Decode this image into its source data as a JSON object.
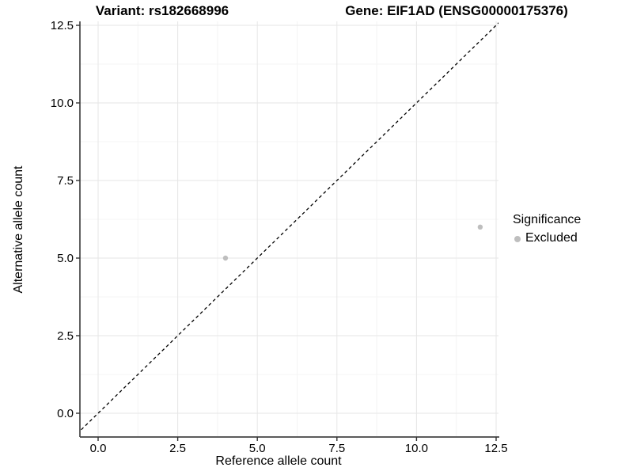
{
  "chart_data": {
    "type": "scatter",
    "title_left": "Variant: rs182668996",
    "title_right": "Gene: EIF1AD (ENSG00000175376)",
    "xlabel": "Reference allele count",
    "ylabel": "Alternative allele count",
    "x_ticks": {
      "values": [
        0,
        2.5,
        5,
        7.5,
        10,
        12.5
      ],
      "labels": [
        "0.0",
        "2.5",
        "5.0",
        "7.5",
        "10.0",
        "12.5"
      ]
    },
    "y_ticks": {
      "values": [
        0,
        2.5,
        5,
        7.5,
        10,
        12.5
      ],
      "labels": [
        "0.0",
        "2.5",
        "5.0",
        "7.5",
        "10.0",
        "12.5"
      ]
    },
    "xlim": [
      -0.57,
      12.57
    ],
    "ylim": [
      -0.77,
      12.63
    ],
    "grid": "major+minor",
    "legend_position": "right",
    "points": [
      {
        "x": 4,
        "y": 5,
        "significance": "Excluded"
      },
      {
        "x": 12,
        "y": 6,
        "significance": "Excluded"
      }
    ],
    "reference_line": {
      "type": "identity",
      "style": "dashed"
    },
    "legend": {
      "title": "Significance",
      "items": [
        {
          "label": "Excluded",
          "color": "#bebebe"
        }
      ]
    },
    "colors": {
      "point": "#bebebe",
      "grid_major": "#e6e6e6",
      "grid_minor": "#f4f4f4",
      "axis": "#454545",
      "tick": "#333333",
      "dashed_line": "#000000",
      "text": "#000000"
    }
  }
}
